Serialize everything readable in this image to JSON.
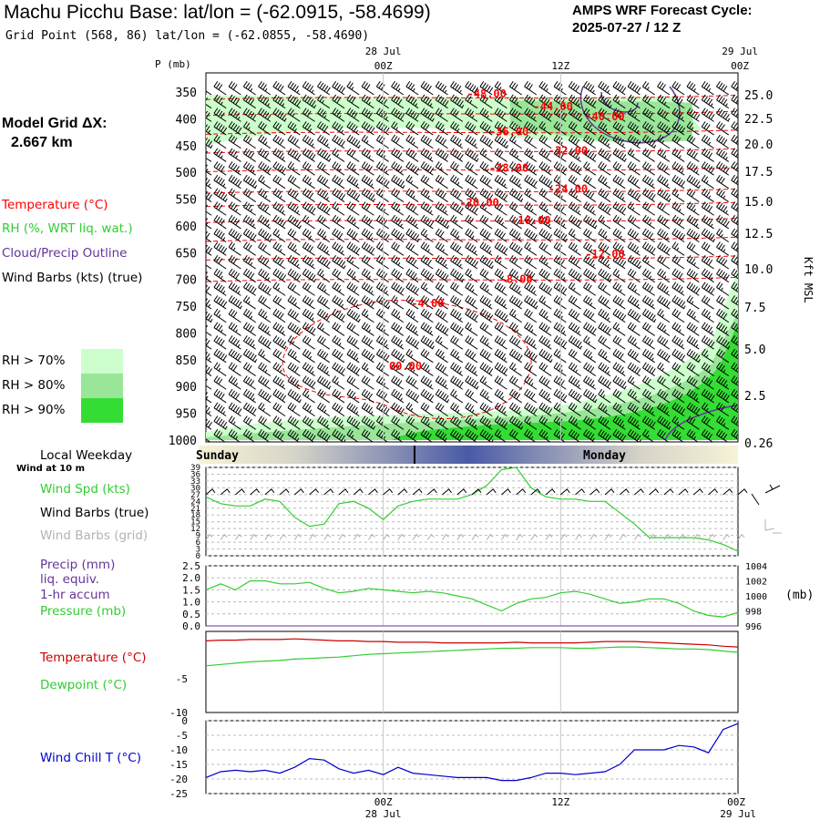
{
  "header": {
    "title": "Machu Picchu Base:  lat/lon = (-62.0915, -58.4699)",
    "grid_point": "Grid Point (568, 86) lat/lon = (-62.0855, -58.4690)",
    "cycle_line1": "AMPS WRF Forecast Cycle:",
    "cycle_line2": "2025-07-27 / 12  Z"
  },
  "left_panel": {
    "model_grid_line1": "Model Grid ΔX:",
    "model_grid_line2": "2.667 km",
    "temperature_label": "Temperature (°C)",
    "rh_label": "RH (%, WRT liq. wat.)",
    "cloud_label": "Cloud/Precip Outline",
    "wind_label": "Wind Barbs (kts) (true)",
    "rh70": "RH > 70%",
    "rh80": "RH > 80%",
    "rh90": "RH > 90%",
    "local_weekday": "Local Weekday",
    "wind_at_10m": "Wind at 10 m",
    "wind_spd": "Wind Spd (kts)",
    "wind_barbs_true": "Wind Barbs (true)",
    "wind_barbs_grid": "Wind Barbs (grid)",
    "precip_line1": "Precip (mm)",
    "precip_line2": "liq. equiv.",
    "precip_line3": "1-hr accum",
    "pressure_label": "Pressure (mb)",
    "temp_label2": "Temperature (°C)",
    "dewpoint_label": "Dewpoint (°C)",
    "windchill_label": "Wind Chill T (°C)"
  },
  "colors": {
    "temperature": "#ff0000",
    "rh": "#33cc33",
    "cloud": "#663399",
    "wind": "#000000",
    "wind_grid": "#b3b3b3",
    "windchill": "#0000cc",
    "rh70": "#ccffcc",
    "rh80": "#99e699",
    "rh90": "#33dd33",
    "day_band": "#5a6aa8"
  },
  "chart_data": [
    {
      "type": "heatmap",
      "name": "cross-section",
      "p_axis_label": "P (mb)",
      "height_axis_label": "Kft MSL",
      "pressure_ticks": [
        "350",
        "400",
        "450",
        "500",
        "550",
        "600",
        "650",
        "700",
        "750",
        "800",
        "850",
        "900",
        "950",
        "1000"
      ],
      "height_ticks": [
        "25.0",
        "22.5",
        "20.0",
        "17.5",
        "15.0",
        "12.5",
        "10.0",
        "7.5",
        "5.0",
        "2.5",
        "0.26"
      ],
      "top_time_ticks": [
        {
          "date": "28 Jul",
          "time": "00Z",
          "hour": 12
        },
        {
          "date": "",
          "time": "12Z",
          "hour": 24
        },
        {
          "date": "29 Jul",
          "time": "00Z",
          "hour": 36
        }
      ],
      "temperature_contour_labels": [
        {
          "text": "-48.00",
          "hour": 19.0,
          "p": 353
        },
        {
          "text": "-44.00",
          "hour": 23.5,
          "p": 377
        },
        {
          "text": "-40.00",
          "hour": 27.0,
          "p": 396
        },
        {
          "text": "-36.00",
          "hour": 20.5,
          "p": 424
        },
        {
          "text": "-32.00",
          "hour": 24.5,
          "p": 460
        },
        {
          "text": "-28.00",
          "hour": 20.5,
          "p": 492
        },
        {
          "text": "-24.00",
          "hour": 24.5,
          "p": 531
        },
        {
          "text": "-20.00",
          "hour": 18.5,
          "p": 557
        },
        {
          "text": "-16.00",
          "hour": 22.0,
          "p": 590
        },
        {
          "text": "-12.00",
          "hour": 27.0,
          "p": 653
        },
        {
          "text": "-8.00",
          "hour": 21.0,
          "p": 700
        },
        {
          "text": "-4.00",
          "hour": 15.0,
          "p": 745
        },
        {
          "text": "00.00",
          "hour": 13.5,
          "p": 862
        }
      ],
      "wind_barb_pressures": [
        350,
        375,
        400,
        425,
        450,
        475,
        500,
        525,
        550,
        575,
        600,
        625,
        650,
        675,
        700,
        725,
        750,
        775,
        800,
        825,
        850,
        875,
        900,
        925,
        950,
        975,
        1000
      ]
    },
    {
      "type": "line",
      "name": "wind-speed",
      "x_hours": [
        0,
        1,
        2,
        3,
        4,
        5,
        6,
        7,
        8,
        9,
        10,
        11,
        12,
        13,
        14,
        15,
        16,
        17,
        18,
        19,
        20,
        21,
        22,
        23,
        24,
        25,
        26,
        27,
        28,
        29,
        30,
        31,
        32,
        33,
        34,
        35,
        36
      ],
      "y_ticks": [
        "39",
        "36",
        "33",
        "30",
        "27",
        "24",
        "21",
        "18",
        "15",
        "12",
        "9",
        "6",
        "3",
        "0"
      ],
      "ylim": [
        0,
        39
      ],
      "values": [
        26,
        23,
        22,
        22,
        25,
        24,
        17,
        13,
        14,
        23,
        24,
        21,
        16,
        22,
        24,
        25,
        25,
        25,
        27,
        31,
        38,
        39,
        30,
        26,
        25,
        25,
        24,
        24,
        19,
        14,
        8,
        8,
        8,
        8,
        7,
        5,
        2
      ]
    },
    {
      "type": "line",
      "name": "precip-pressure",
      "left_ticks": [
        "2.5",
        "2.0",
        "1.5",
        "1.0",
        "0.5",
        "0.0"
      ],
      "right_ticks": [
        "1004",
        "1002",
        "1000",
        "998",
        "996"
      ],
      "right_unit": "(mb)",
      "ylim_precip": [
        0,
        2.5
      ],
      "ylim_pressure": [
        996,
        1004
      ],
      "precip_values": [
        0,
        0,
        0,
        0,
        0,
        0,
        0,
        0,
        0,
        0,
        0,
        0,
        0,
        0,
        0,
        0,
        0,
        0,
        0,
        0,
        0,
        0,
        0,
        0,
        0,
        0,
        0,
        0,
        0,
        0,
        0,
        0,
        0,
        0,
        0,
        0,
        0
      ],
      "pressure_values": [
        1000.8,
        1001.6,
        1000.8,
        1002.0,
        1002.0,
        1001.6,
        1001.6,
        1001.8,
        1001.0,
        1000.4,
        1000.6,
        1001.0,
        1000.8,
        1000.6,
        1000.4,
        1000.6,
        1000.4,
        1000.0,
        999.6,
        998.8,
        998.0,
        999.0,
        999.6,
        999.8,
        1000.4,
        1000.6,
        1000.2,
        999.6,
        999.0,
        999.2,
        999.6,
        999.6,
        999.0,
        998.0,
        997.4,
        997.2,
        997.8
      ]
    },
    {
      "type": "line",
      "name": "temperature-dewpoint",
      "y_ticks": [
        {
          "label": "-5",
          "value": -5
        },
        {
          "label": "-10",
          "value": -10
        }
      ],
      "ylim": [
        -10,
        2
      ],
      "temperature_values": [
        0.6,
        0.7,
        0.7,
        0.8,
        0.8,
        0.8,
        0.9,
        0.8,
        0.7,
        0.6,
        0.6,
        0.5,
        0.5,
        0.4,
        0.4,
        0.4,
        0.3,
        0.3,
        0.3,
        0.3,
        0.3,
        0.4,
        0.3,
        0.3,
        0.3,
        0.3,
        0.4,
        0.5,
        0.5,
        0.5,
        0.4,
        0.3,
        0.2,
        0.1,
        0.0,
        -0.2,
        -0.3
      ],
      "dewpoint_values": [
        -3.1,
        -2.9,
        -2.7,
        -2.5,
        -2.4,
        -2.3,
        -2.1,
        -2.0,
        -1.9,
        -1.8,
        -1.6,
        -1.4,
        -1.3,
        -1.2,
        -1.1,
        -1.0,
        -0.9,
        -0.8,
        -0.7,
        -0.6,
        -0.5,
        -0.5,
        -0.4,
        -0.4,
        -0.4,
        -0.5,
        -0.5,
        -0.4,
        -0.3,
        -0.3,
        -0.4,
        -0.5,
        -0.6,
        -0.6,
        -0.7,
        -0.9,
        -1.1
      ]
    },
    {
      "type": "line",
      "name": "wind-chill",
      "y_ticks": [
        "0",
        "-5",
        "-10",
        "-15",
        "-20",
        "-25"
      ],
      "ylim": [
        -25,
        0
      ],
      "values": [
        -19.5,
        -17.5,
        -17.0,
        -17.5,
        -17.0,
        -18.0,
        -16.0,
        -13.0,
        -13.5,
        -16.5,
        -18.0,
        -17.0,
        -18.5,
        -16.0,
        -18.0,
        -18.5,
        -19.0,
        -19.5,
        -19.5,
        -19.5,
        -20.5,
        -20.5,
        -19.5,
        -18.0,
        -18.0,
        -18.5,
        -18.0,
        -17.5,
        -15.0,
        -10.0,
        -10.0,
        -10.0,
        -8.5,
        -9.0,
        -11.0,
        -3.0,
        -1.0
      ],
      "bottom_time_ticks": [
        {
          "date": "28 Jul",
          "time": "00Z",
          "hour": 12
        },
        {
          "date": "",
          "time": "12Z",
          "hour": 24
        },
        {
          "date": "29 Jul",
          "time": "00Z",
          "hour": 36
        }
      ],
      "weekday_labels": [
        {
          "text": "Sunday",
          "hour": 0
        },
        {
          "text": "Monday",
          "hour": 25
        }
      ]
    }
  ]
}
